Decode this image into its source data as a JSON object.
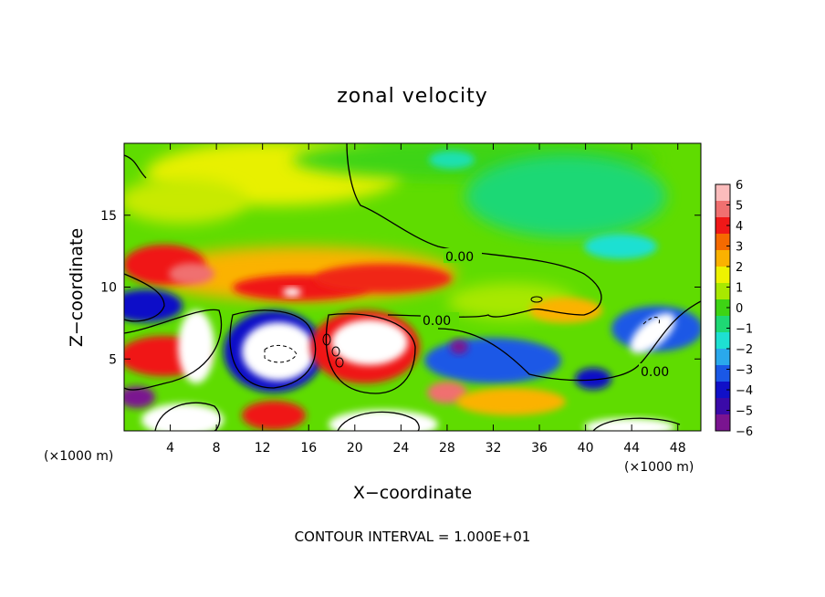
{
  "chart_data": {
    "type": "heatmap",
    "title": "zonal velocity",
    "xlabel": "X−coordinate",
    "ylabel": "Z−coordinate",
    "x_unit": "(×1000 m)",
    "x_unit_right": "(×1000 m)",
    "xlim": [
      0,
      50
    ],
    "ylim": [
      0,
      20
    ],
    "xticks": [
      4,
      8,
      12,
      16,
      20,
      24,
      28,
      32,
      36,
      40,
      44,
      48
    ],
    "yticks": [
      5,
      10,
      15
    ],
    "colorbar": {
      "range": [
        -6,
        6
      ],
      "ticks": [
        "6",
        "5",
        "4",
        "3",
        "2",
        "1",
        "0",
        "−1",
        "−2",
        "−3",
        "−4",
        "−5",
        "−6"
      ],
      "colors": [
        "#fbbcbc",
        "#f07070",
        "#f01818",
        "#f56a00",
        "#fbb200",
        "#eef200",
        "#a8e800",
        "#3ed414",
        "#1ed874",
        "#1ee0d2",
        "#2aa8ec",
        "#1a58e6",
        "#1010c8",
        "#3a0aa8",
        "#7a1490"
      ]
    },
    "contour_labels": [
      "0.00",
      "0.00",
      "0.00"
    ],
    "footer": "CONTOUR INTERVAL = 1.000E+01",
    "features": [
      {
        "x": 3,
        "z": 11,
        "value": 3
      },
      {
        "x": 5,
        "z": 11.7,
        "value": 5
      },
      {
        "x": 14,
        "z": 11,
        "value": 5
      },
      {
        "x": 21,
        "z": 11.5,
        "value": 5
      },
      {
        "x": 25,
        "z": 10.8,
        "value": 4
      },
      {
        "x": 1.5,
        "z": 8.8,
        "value": -5
      },
      {
        "x": 6.5,
        "z": 6.5,
        "value": 6
      },
      {
        "x": 14,
        "z": 5.5,
        "value": 6
      },
      {
        "x": 14,
        "z": 5.5,
        "value": -4
      },
      {
        "x": 20,
        "z": 7,
        "value": 6
      },
      {
        "x": 29,
        "z": 5.8,
        "value": -6
      },
      {
        "x": 33.5,
        "z": 4.5,
        "value": -4
      },
      {
        "x": 39.5,
        "z": 3.5,
        "value": -5
      },
      {
        "x": 45.5,
        "z": 7,
        "value": 6
      },
      {
        "x": 47,
        "z": 8,
        "value": -4
      },
      {
        "x": 46,
        "z": 13,
        "value": -2
      },
      {
        "x": 31,
        "z": 17,
        "value": -1
      },
      {
        "x": 11,
        "z": 17,
        "value": 2
      },
      {
        "x": 22,
        "z": 2.5,
        "value": 2
      },
      {
        "x": 8,
        "z": 1,
        "value": 6
      },
      {
        "x": 21.5,
        "z": 0.5,
        "value": 6
      },
      {
        "x": 45,
        "z": 0.3,
        "value": 6
      }
    ]
  }
}
